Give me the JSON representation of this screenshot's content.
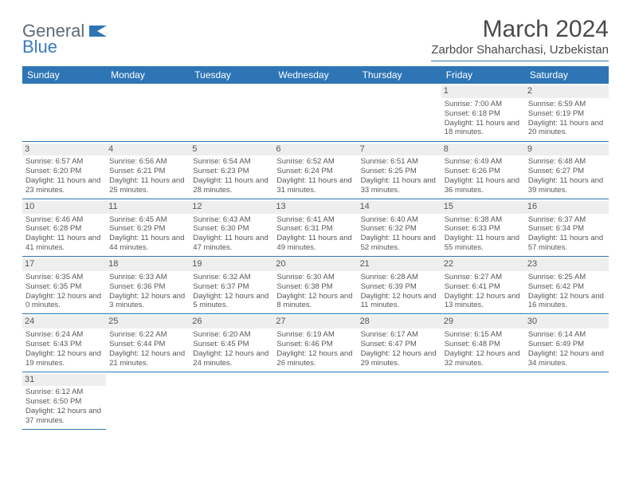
{
  "logo": {
    "text1": "General",
    "text2": "Blue"
  },
  "header": {
    "month_title": "March 2024",
    "location": "Zarbdor Shaharchasi, Uzbekistan"
  },
  "calendar": {
    "weekday_header_bg": "#2e75b6",
    "weekday_header_fg": "#ffffff",
    "weekdays": [
      "Sunday",
      "Monday",
      "Tuesday",
      "Wednesday",
      "Thursday",
      "Friday",
      "Saturday"
    ],
    "first_weekday_index": 5,
    "days_in_month": 31,
    "days": [
      {
        "n": 1,
        "sunrise": "7:00 AM",
        "sunset": "6:18 PM",
        "daylight": "11 hours and 18 minutes."
      },
      {
        "n": 2,
        "sunrise": "6:59 AM",
        "sunset": "6:19 PM",
        "daylight": "11 hours and 20 minutes."
      },
      {
        "n": 3,
        "sunrise": "6:57 AM",
        "sunset": "6:20 PM",
        "daylight": "11 hours and 23 minutes."
      },
      {
        "n": 4,
        "sunrise": "6:56 AM",
        "sunset": "6:21 PM",
        "daylight": "11 hours and 25 minutes."
      },
      {
        "n": 5,
        "sunrise": "6:54 AM",
        "sunset": "6:23 PM",
        "daylight": "11 hours and 28 minutes."
      },
      {
        "n": 6,
        "sunrise": "6:52 AM",
        "sunset": "6:24 PM",
        "daylight": "11 hours and 31 minutes."
      },
      {
        "n": 7,
        "sunrise": "6:51 AM",
        "sunset": "6:25 PM",
        "daylight": "11 hours and 33 minutes."
      },
      {
        "n": 8,
        "sunrise": "6:49 AM",
        "sunset": "6:26 PM",
        "daylight": "11 hours and 36 minutes."
      },
      {
        "n": 9,
        "sunrise": "6:48 AM",
        "sunset": "6:27 PM",
        "daylight": "11 hours and 39 minutes."
      },
      {
        "n": 10,
        "sunrise": "6:46 AM",
        "sunset": "6:28 PM",
        "daylight": "11 hours and 41 minutes."
      },
      {
        "n": 11,
        "sunrise": "6:45 AM",
        "sunset": "6:29 PM",
        "daylight": "11 hours and 44 minutes."
      },
      {
        "n": 12,
        "sunrise": "6:43 AM",
        "sunset": "6:30 PM",
        "daylight": "11 hours and 47 minutes."
      },
      {
        "n": 13,
        "sunrise": "6:41 AM",
        "sunset": "6:31 PM",
        "daylight": "11 hours and 49 minutes."
      },
      {
        "n": 14,
        "sunrise": "6:40 AM",
        "sunset": "6:32 PM",
        "daylight": "11 hours and 52 minutes."
      },
      {
        "n": 15,
        "sunrise": "6:38 AM",
        "sunset": "6:33 PM",
        "daylight": "11 hours and 55 minutes."
      },
      {
        "n": 16,
        "sunrise": "6:37 AM",
        "sunset": "6:34 PM",
        "daylight": "11 hours and 57 minutes."
      },
      {
        "n": 17,
        "sunrise": "6:35 AM",
        "sunset": "6:35 PM",
        "daylight": "12 hours and 0 minutes."
      },
      {
        "n": 18,
        "sunrise": "6:33 AM",
        "sunset": "6:36 PM",
        "daylight": "12 hours and 3 minutes."
      },
      {
        "n": 19,
        "sunrise": "6:32 AM",
        "sunset": "6:37 PM",
        "daylight": "12 hours and 5 minutes."
      },
      {
        "n": 20,
        "sunrise": "6:30 AM",
        "sunset": "6:38 PM",
        "daylight": "12 hours and 8 minutes."
      },
      {
        "n": 21,
        "sunrise": "6:28 AM",
        "sunset": "6:39 PM",
        "daylight": "12 hours and 11 minutes."
      },
      {
        "n": 22,
        "sunrise": "6:27 AM",
        "sunset": "6:41 PM",
        "daylight": "12 hours and 13 minutes."
      },
      {
        "n": 23,
        "sunrise": "6:25 AM",
        "sunset": "6:42 PM",
        "daylight": "12 hours and 16 minutes."
      },
      {
        "n": 24,
        "sunrise": "6:24 AM",
        "sunset": "6:43 PM",
        "daylight": "12 hours and 19 minutes."
      },
      {
        "n": 25,
        "sunrise": "6:22 AM",
        "sunset": "6:44 PM",
        "daylight": "12 hours and 21 minutes."
      },
      {
        "n": 26,
        "sunrise": "6:20 AM",
        "sunset": "6:45 PM",
        "daylight": "12 hours and 24 minutes."
      },
      {
        "n": 27,
        "sunrise": "6:19 AM",
        "sunset": "6:46 PM",
        "daylight": "12 hours and 26 minutes."
      },
      {
        "n": 28,
        "sunrise": "6:17 AM",
        "sunset": "6:47 PM",
        "daylight": "12 hours and 29 minutes."
      },
      {
        "n": 29,
        "sunrise": "6:15 AM",
        "sunset": "6:48 PM",
        "daylight": "12 hours and 32 minutes."
      },
      {
        "n": 30,
        "sunrise": "6:14 AM",
        "sunset": "6:49 PM",
        "daylight": "12 hours and 34 minutes."
      },
      {
        "n": 31,
        "sunrise": "6:12 AM",
        "sunset": "6:50 PM",
        "daylight": "12 hours and 37 minutes."
      }
    ]
  },
  "labels": {
    "sunrise": "Sunrise:",
    "sunset": "Sunset:",
    "daylight": "Daylight:"
  },
  "colors": {
    "accent": "#2e75b6",
    "daynum_bg": "#eeeeee",
    "text": "#4a4a4a"
  }
}
